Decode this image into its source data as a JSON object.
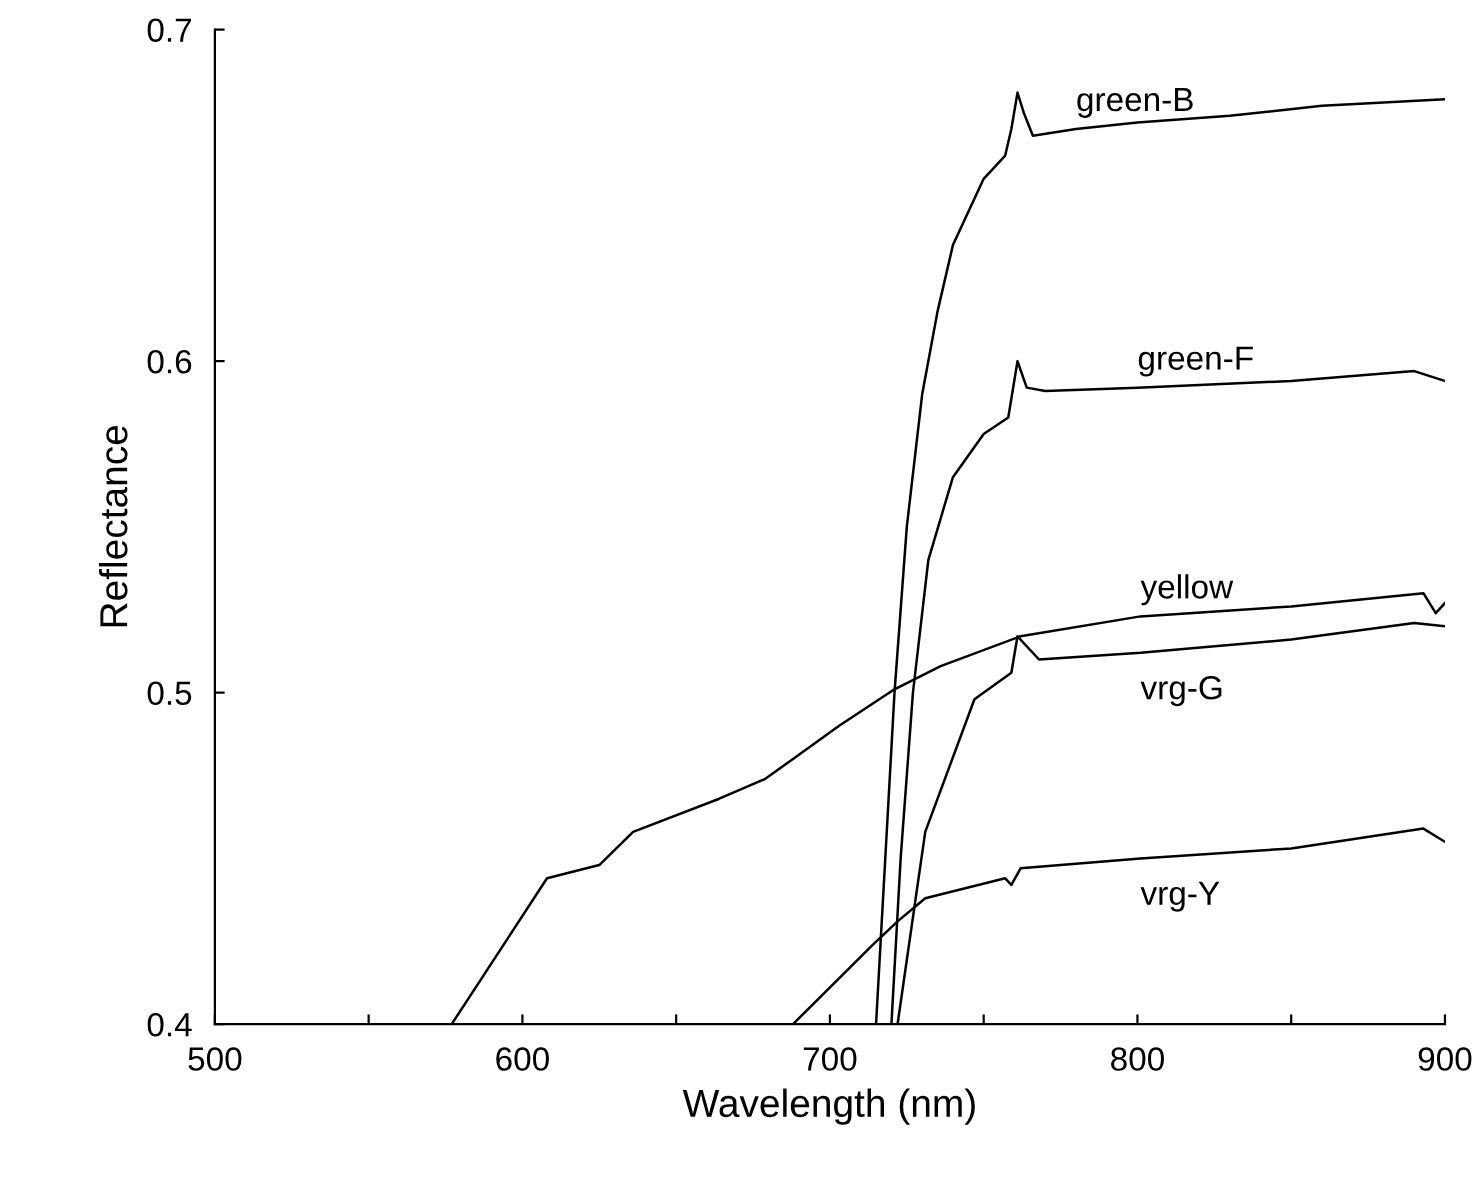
{
  "chart_data": {
    "type": "line",
    "xlabel": "Wavelength (nm)",
    "ylabel": "Reflectance",
    "xlim": [
      500,
      900
    ],
    "ylim": [
      0.4,
      0.7
    ],
    "xticks": [
      500,
      {
        "value": 550,
        "label": null
      },
      600,
      {
        "value": 650,
        "label": null
      },
      700,
      {
        "value": 750,
        "label": null
      },
      800,
      {
        "value": 850,
        "label": null
      },
      900
    ],
    "yticks": [
      0.4,
      0.5,
      0.6,
      0.7
    ],
    "grid": false,
    "series": [
      {
        "name": "green-B",
        "color": "#000000",
        "x": [
          715,
          718,
          721,
          725,
          730,
          735,
          740,
          750,
          757,
          759,
          761,
          763,
          766,
          780,
          800,
          830,
          860,
          880,
          900
        ],
        "values": [
          0.4,
          0.45,
          0.5,
          0.55,
          0.59,
          0.615,
          0.635,
          0.655,
          0.662,
          0.67,
          0.681,
          0.675,
          0.668,
          0.67,
          0.672,
          0.674,
          0.677,
          0.678,
          0.679
        ]
      },
      {
        "name": "green-F",
        "color": "#000000",
        "x": [
          720,
          723,
          727,
          732,
          740,
          750,
          758,
          761,
          764,
          770,
          800,
          850,
          890,
          900
        ],
        "values": [
          0.4,
          0.45,
          0.5,
          0.54,
          0.565,
          0.578,
          0.583,
          0.6,
          0.592,
          0.591,
          0.592,
          0.594,
          0.597,
          0.594
        ]
      },
      {
        "name": "yellow",
        "color": "#000000",
        "x": [
          577,
          608,
          625,
          636,
          664,
          679,
          688,
          703,
          721,
          736,
          762,
          801,
          850,
          893,
          897,
          900
        ],
        "values": [
          0.4,
          0.444,
          0.448,
          0.458,
          0.468,
          0.474,
          0.48,
          0.49,
          0.501,
          0.508,
          0.517,
          0.523,
          0.526,
          0.53,
          0.524,
          0.527
        ]
      },
      {
        "name": "vrg-G",
        "color": "#000000",
        "x": [
          722,
          731,
          747,
          759,
          761,
          768,
          801,
          850,
          890,
          900
        ],
        "values": [
          0.4,
          0.458,
          0.498,
          0.506,
          0.517,
          0.51,
          0.512,
          0.516,
          0.521,
          0.52
        ]
      },
      {
        "name": "vrg-Y",
        "color": "#000000",
        "x": [
          688,
          714,
          722,
          731,
          757,
          759,
          762,
          801,
          850,
          893,
          900
        ],
        "values": [
          0.4,
          0.424,
          0.431,
          0.438,
          0.444,
          0.442,
          0.447,
          0.45,
          0.453,
          0.459,
          0.455
        ]
      }
    ]
  }
}
